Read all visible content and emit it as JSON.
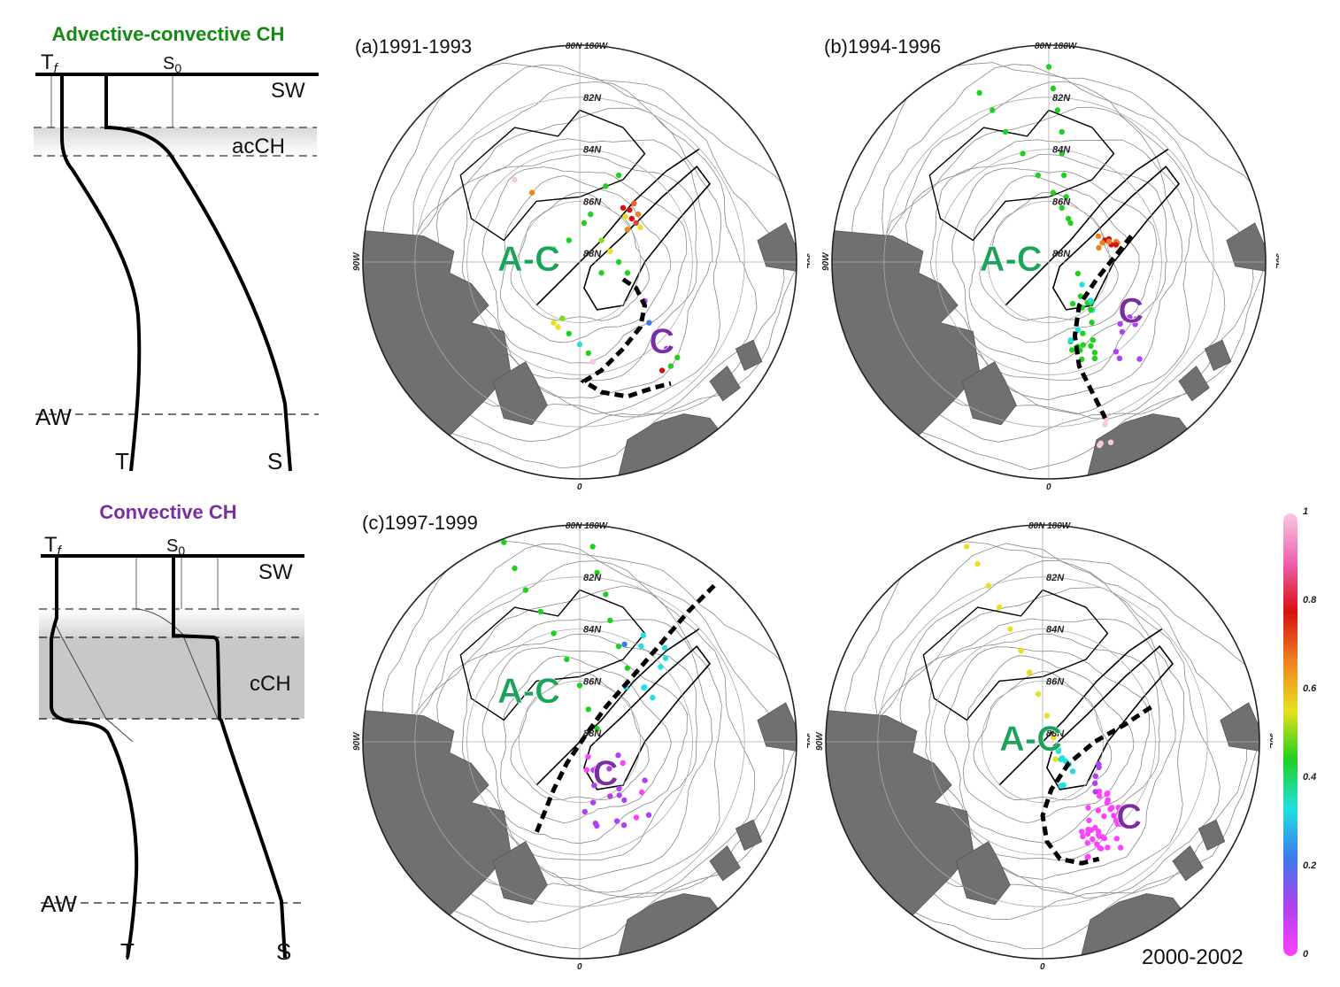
{
  "schematics": [
    {
      "title": "Advective-convective CH",
      "title_color": "#148a14",
      "labels": {
        "tf": "T",
        "tf_sub": "f",
        "s0": "S",
        "s0_sub": "0",
        "sw": "SW",
        "layer": "acCH",
        "aw": "AW",
        "t": "T",
        "s": "S"
      }
    },
    {
      "title": "Convective CH",
      "title_color": "#7a2fa0",
      "labels": {
        "tf": "T",
        "tf_sub": "f",
        "s0": "S",
        "s0_sub": "0",
        "sw": "SW",
        "layer": "cCH",
        "aw": "AW",
        "t": "T",
        "s": "S"
      }
    }
  ],
  "maps": [
    {
      "label": "(a)1991-1993",
      "regions": [
        "A-C",
        "C"
      ]
    },
    {
      "label": "(b)1994-1996",
      "regions": [
        "A-C",
        "C"
      ]
    },
    {
      "label": "(c)1997-1999",
      "regions": [
        "A-C",
        "C"
      ]
    },
    {
      "label": "2000-2002",
      "regions": [
        "A-C",
        "C"
      ]
    }
  ],
  "map_grid_labels": {
    "lat": [
      "82N",
      "84N",
      "86N",
      "88N"
    ],
    "top_lon": "80N 180W",
    "left_lon": "90W",
    "right_lon": "90E",
    "bottom_lon": "0"
  },
  "region_colors": {
    "advective_convective": "#1aa35a",
    "convective": "#7a2fa0"
  },
  "colorbar": {
    "ticks": [
      "1",
      "0.8",
      "0.6",
      "0.4",
      "0.2",
      "0"
    ],
    "colors": [
      "#f8c8e0",
      "#f060b0",
      "#d81010",
      "#f08020",
      "#e8e020",
      "#20d020",
      "#20e0e0",
      "#3a7af0",
      "#b040f0",
      "#ff40ff"
    ]
  }
}
